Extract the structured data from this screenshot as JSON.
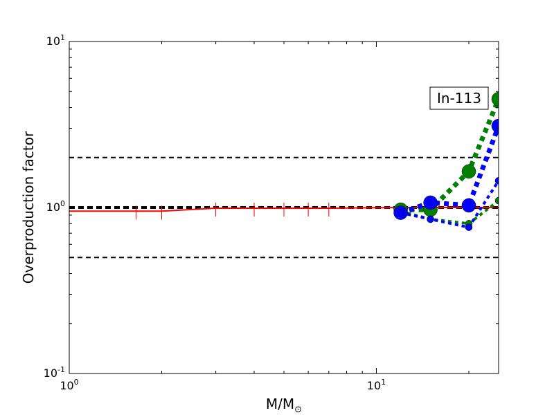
{
  "chart_data": {
    "type": "line",
    "xscale": "log",
    "yscale": "log",
    "xlim": [
      1,
      25
    ],
    "ylim": [
      0.1,
      10
    ],
    "xlabel": "M/M",
    "xlabel_sub": "⊙",
    "ylabel": "Overproduction factor",
    "annotation": "In-113",
    "x_ticks": [
      {
        "base": "10",
        "exp": "0",
        "value": 1
      },
      {
        "base": "10",
        "exp": "1",
        "value": 10
      }
    ],
    "y_ticks": [
      {
        "base": "10",
        "exp": "-1",
        "value": 0.1
      },
      {
        "base": "10",
        "exp": "0",
        "value": 1
      },
      {
        "base": "10",
        "exp": "1",
        "value": 10
      }
    ],
    "reference_lines": [
      {
        "y": 2.0,
        "style": "dashed",
        "color": "#000000",
        "width": 2
      },
      {
        "y": 1.0,
        "style": "dashed",
        "color": "#000000",
        "width": 4
      },
      {
        "y": 0.5,
        "style": "dashed",
        "color": "#000000",
        "width": 2
      }
    ],
    "series": [
      {
        "color": "#ff0000",
        "style": "solid",
        "width": 2,
        "marker": "tick",
        "x": [
          1.0,
          1.65,
          2.0,
          3.0,
          4.0,
          5.0,
          6.0,
          7.0
        ],
        "y": [
          0.95,
          0.95,
          0.95,
          0.99,
          0.99,
          0.99,
          0.99,
          0.99
        ]
      },
      {
        "color": "#ff0000",
        "style": "solid",
        "width": 2,
        "marker": "none",
        "x": [
          7.0,
          12.0,
          25.0
        ],
        "y": [
          0.99,
          1.0,
          1.0
        ]
      },
      {
        "color": "#008000",
        "style": "dotted",
        "width": 7,
        "marker": "circle",
        "marker_size": 10,
        "x": [
          12,
          15,
          20,
          25
        ],
        "y": [
          0.97,
          0.97,
          1.65,
          4.5
        ]
      },
      {
        "color": "#008000",
        "style": "dotted",
        "width": 4,
        "marker": "circle",
        "marker_size": 5,
        "x": [
          12,
          15,
          20,
          25
        ],
        "y": [
          0.95,
          0.85,
          0.8,
          1.1
        ]
      },
      {
        "color": "#0000ff",
        "style": "dotted",
        "width": 7,
        "marker": "circle",
        "marker_size": 10,
        "x": [
          12,
          15,
          20,
          25
        ],
        "y": [
          0.93,
          1.07,
          1.03,
          3.1
        ]
      },
      {
        "color": "#0000ff",
        "style": "dotted",
        "width": 4,
        "marker": "circle",
        "marker_size": 5,
        "x": [
          12,
          15,
          20,
          25
        ],
        "y": [
          0.93,
          0.85,
          0.76,
          1.45
        ]
      }
    ]
  }
}
